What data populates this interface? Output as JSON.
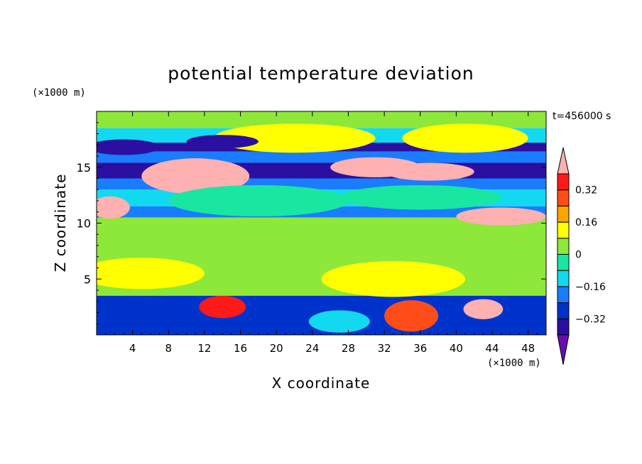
{
  "chart_data": {
    "type": "heatmap",
    "title": "potential temperature deviation",
    "xlabel": "X coordinate",
    "ylabel": "Z coordinate",
    "x_unit": "(×1000 m)",
    "y_unit": "(×1000 m)",
    "time_label": "t=456000 s",
    "xlim": [
      0,
      50
    ],
    "ylim": [
      0,
      20
    ],
    "x_ticks": [
      4,
      8,
      12,
      16,
      20,
      24,
      28,
      32,
      36,
      40,
      44,
      48
    ],
    "y_ticks": [
      5,
      10,
      15
    ],
    "colorbar": {
      "levels": [
        -0.4,
        -0.32,
        -0.24,
        -0.16,
        -0.08,
        0,
        0.08,
        0.16,
        0.24,
        0.32,
        0.4
      ],
      "labels": [
        "0.32",
        "0.16",
        "0",
        "−0.16",
        "−0.32"
      ],
      "label_values": [
        0.32,
        0.16,
        0,
        -0.16,
        -0.32
      ],
      "colors": [
        "#6a0dad",
        "#2a0fa0",
        "#0033cc",
        "#1a7cff",
        "#12d9f0",
        "#19e6a0",
        "#8de83a",
        "#ffff00",
        "#ffa500",
        "#ff4d1a",
        "#ff1a1a",
        "#ffb0b0"
      ],
      "extend": "both"
    },
    "regions": [
      {
        "z": [
          18.5,
          20
        ],
        "level": 0.04
      },
      {
        "z": [
          17.2,
          18.5
        ],
        "level": -0.12
      },
      {
        "z": [
          16.4,
          17.2
        ],
        "level": -0.34
      },
      {
        "z": [
          15.4,
          16.4
        ],
        "level": -0.2
      },
      {
        "z": [
          14.0,
          15.4
        ],
        "level": -0.36
      },
      {
        "z": [
          13.0,
          14.0
        ],
        "level": -0.2
      },
      {
        "z": [
          11.5,
          13.0
        ],
        "level": -0.1
      },
      {
        "z": [
          10.5,
          11.5
        ],
        "level": -0.18
      },
      {
        "z": [
          3.5,
          10.5
        ],
        "level": 0.03
      },
      {
        "z": [
          0,
          3.5
        ],
        "level": -0.3
      }
    ],
    "blobs": [
      {
        "x": 22,
        "z": 17.6,
        "rx": 9,
        "rz": 1.3,
        "level": 0.12
      },
      {
        "x": 41,
        "z": 17.6,
        "rx": 7,
        "rz": 1.3,
        "level": 0.12
      },
      {
        "x": 14,
        "z": 17.3,
        "rx": 4,
        "rz": 0.6,
        "level": -0.36
      },
      {
        "x": 3,
        "z": 16.8,
        "rx": 4,
        "rz": 0.7,
        "level": -0.36
      },
      {
        "x": 11,
        "z": 14.2,
        "rx": 6,
        "rz": 1.6,
        "level": 0.44
      },
      {
        "x": 31,
        "z": 15.0,
        "rx": 5,
        "rz": 0.9,
        "level": 0.44
      },
      {
        "x": 37,
        "z": 14.6,
        "rx": 5,
        "rz": 0.8,
        "level": 0.44
      },
      {
        "x": 1.5,
        "z": 11.4,
        "rx": 2.2,
        "rz": 1.0,
        "level": 0.44
      },
      {
        "x": 45,
        "z": 10.6,
        "rx": 5,
        "rz": 0.8,
        "level": 0.44
      },
      {
        "x": 18,
        "z": 12.0,
        "rx": 10,
        "rz": 1.4,
        "level": -0.08
      },
      {
        "x": 36,
        "z": 12.3,
        "rx": 9,
        "rz": 1.1,
        "level": -0.08
      },
      {
        "x": 5,
        "z": 5.5,
        "rx": 7,
        "rz": 1.4,
        "level": 0.1
      },
      {
        "x": 33,
        "z": 5.0,
        "rx": 8,
        "rz": 1.6,
        "level": 0.1
      },
      {
        "x": 35,
        "z": 1.7,
        "rx": 3,
        "rz": 1.4,
        "level": 0.28
      },
      {
        "x": 43,
        "z": 2.3,
        "rx": 2.2,
        "rz": 0.9,
        "level": 0.44
      },
      {
        "x": 14,
        "z": 2.5,
        "rx": 2.6,
        "rz": 1.0,
        "level": 0.36
      },
      {
        "x": 27,
        "z": 1.2,
        "rx": 3.4,
        "rz": 1.0,
        "level": -0.14
      }
    ]
  }
}
